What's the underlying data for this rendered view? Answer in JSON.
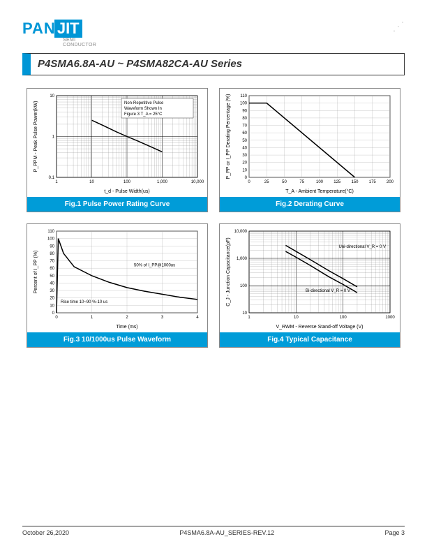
{
  "logo": {
    "pan": "PAN",
    "jit": "JIT",
    "sub1": "SEMI",
    "sub2": "CONDUCTOR"
  },
  "title": "P4SMA6.8A-AU ~ P4SMA82CA-AU Series",
  "footer": {
    "date": "October 26,2020",
    "rev": "P4SMA6.8A-AU_SERIES-REV.12",
    "page": "Page 3"
  },
  "charts": {
    "fig1": {
      "caption": "Fig.1 Pulse Power Rating Curve",
      "type": "line-loglog",
      "xlabel": "t_d - Pulse Width(us)",
      "ylabel": "P_PPM - Peak Pulse Power(kW)",
      "note": "Non-Repetitive Pulse Waveform Shown In Figure 3 T_A = 25°C",
      "xticks": [
        "1",
        "10",
        "100",
        "1,000",
        "10,000"
      ],
      "yticks": [
        "0.1",
        "1",
        "10"
      ],
      "xlim": [
        1,
        10000
      ],
      "ylim": [
        0.1,
        10
      ],
      "series": [
        {
          "x": [
            10,
            20,
            50,
            100,
            200,
            500,
            1000
          ],
          "y": [
            2.5,
            1.9,
            1.3,
            1.0,
            0.78,
            0.55,
            0.42
          ],
          "color": "#000000",
          "width": 1.5
        }
      ],
      "grid_color": "#888888",
      "bg": "#ffffff",
      "fontsize_label": 7,
      "fontsize_tick": 6
    },
    "fig2": {
      "caption": "Fig.2 Derating Curve",
      "type": "line",
      "xlabel": "T_A - Ambient Temperature(°C)",
      "ylabel": "P_PP or I_PP Derating Percentage (%)",
      "xticks": [
        "0",
        "25",
        "50",
        "75",
        "100",
        "125",
        "150",
        "175",
        "200"
      ],
      "yticks": [
        "0",
        "10",
        "20",
        "30",
        "40",
        "50",
        "60",
        "70",
        "80",
        "90",
        "100",
        "110"
      ],
      "xlim": [
        0,
        200
      ],
      "ylim": [
        0,
        110
      ],
      "series": [
        {
          "x": [
            0,
            25,
            150
          ],
          "y": [
            100,
            100,
            0
          ],
          "color": "#000000",
          "width": 1.5
        }
      ],
      "grid_color": "#aaaaaa",
      "bg": "#ffffff",
      "fontsize_label": 7,
      "fontsize_tick": 6
    },
    "fig3": {
      "caption": "Fig.3 10/1000us Pulse Waveform",
      "type": "line",
      "xlabel": "Time (ms)",
      "ylabel": "Percent of I_PP (%)",
      "note1": "50% of I_PP@1000us",
      "note2": "Rise time 10~90 %-10 us",
      "xticks": [
        "0",
        "1",
        "2",
        "3",
        "4"
      ],
      "yticks": [
        "0",
        "10",
        "20",
        "30",
        "40",
        "50",
        "60",
        "70",
        "80",
        "90",
        "100",
        "110"
      ],
      "xlim": [
        0,
        4
      ],
      "ylim": [
        0,
        110
      ],
      "series": [
        {
          "x": [
            0,
            0.05,
            0.2,
            0.5,
            1.0,
            1.5,
            2.0,
            2.5,
            3.0,
            3.5,
            4.0
          ],
          "y": [
            0,
            100,
            80,
            62,
            50,
            41,
            34,
            29,
            25,
            21,
            18
          ],
          "color": "#000000",
          "width": 1.5
        }
      ],
      "grid_color": "#aaaaaa",
      "bg": "#ffffff",
      "fontsize_label": 7,
      "fontsize_tick": 6
    },
    "fig4": {
      "caption": "Fig.4 Typical Capacitance",
      "type": "line-loglog",
      "xlabel": "V_RWM - Reverse  Stand-off Voltage (V)",
      "ylabel": "C_J - Junction Capacitance(pF)",
      "note1": "Uni-directional V_R = 0 V",
      "note2": "Bi-directional V_R = 0 V",
      "xticks": [
        "1",
        "10",
        "100",
        "1000"
      ],
      "yticks": [
        "10",
        "100",
        "1,000",
        "10,000"
      ],
      "xlim": [
        1,
        1000
      ],
      "ylim": [
        10,
        10000
      ],
      "series": [
        {
          "label": "uni",
          "x": [
            6,
            10,
            20,
            50,
            100,
            200
          ],
          "y": [
            3000,
            1800,
            900,
            350,
            180,
            90
          ],
          "color": "#000000",
          "width": 1.5
        },
        {
          "label": "bi",
          "x": [
            6,
            10,
            20,
            50,
            100,
            200
          ],
          "y": [
            1800,
            1100,
            550,
            210,
            110,
            55
          ],
          "color": "#000000",
          "width": 1.5
        }
      ],
      "grid_color": "#888888",
      "bg": "#ffffff",
      "fontsize_label": 7,
      "fontsize_tick": 6
    }
  }
}
